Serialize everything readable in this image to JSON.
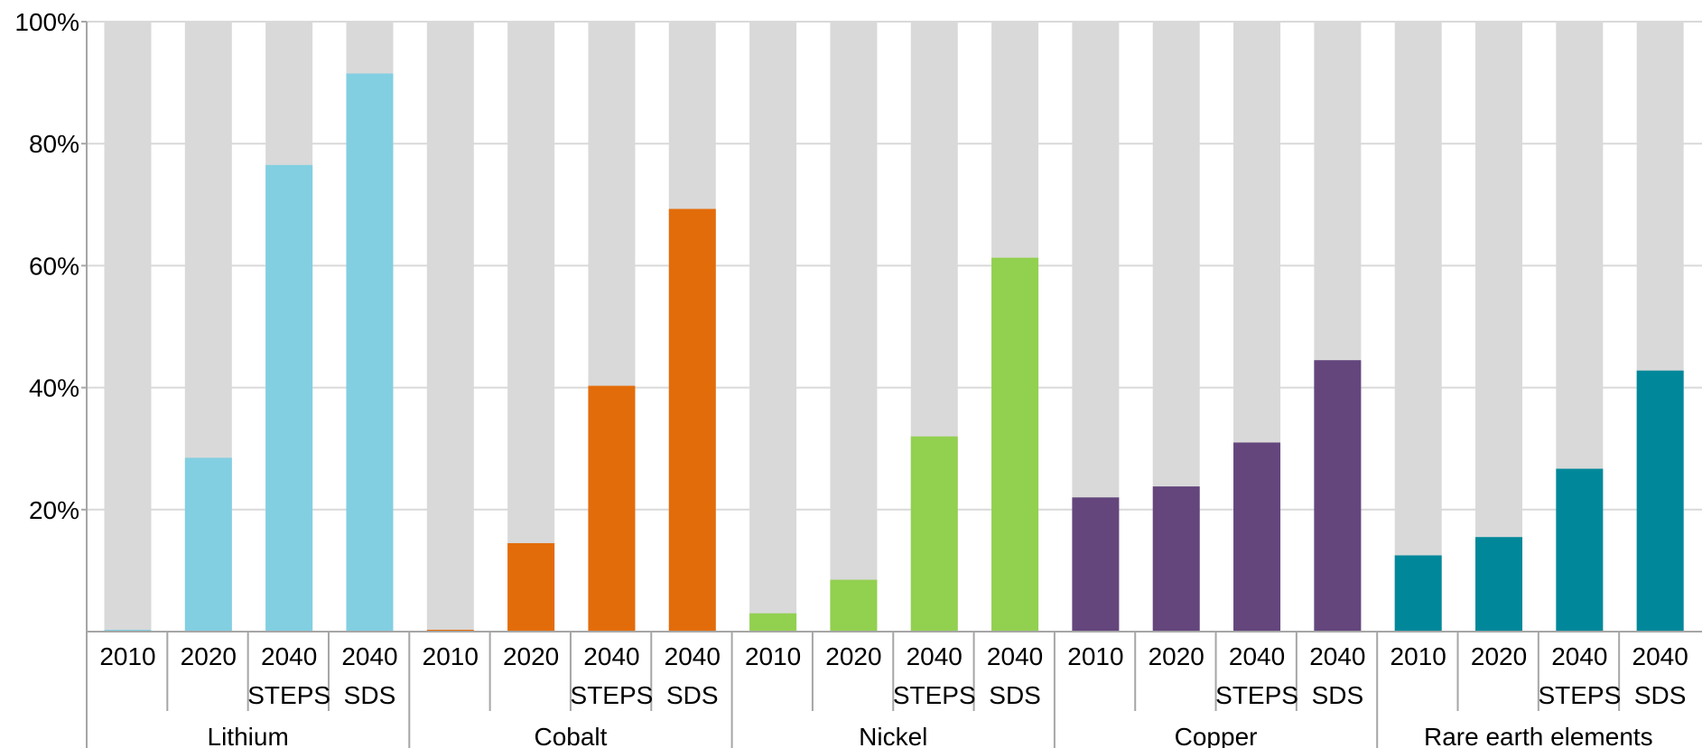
{
  "chart_data": {
    "type": "bar",
    "stacked": true,
    "ylim": [
      0,
      100
    ],
    "yticks": [
      "20%",
      "40%",
      "60%",
      "80%",
      "100%"
    ],
    "grid": true,
    "background_color": "#d9d9d9",
    "groups": [
      {
        "name": "Lithium",
        "color": "#82cfe1",
        "bars": [
          {
            "label": [
              "2010"
            ],
            "value": 0.3
          },
          {
            "label": [
              "2020"
            ],
            "value": 28.5
          },
          {
            "label": [
              "2040",
              "STEPS"
            ],
            "value": 76.5
          },
          {
            "label": [
              "2040",
              "SDS"
            ],
            "value": 91.5
          }
        ]
      },
      {
        "name": "Cobalt",
        "color": "#e36c0a",
        "bars": [
          {
            "label": [
              "2010"
            ],
            "value": 0.3
          },
          {
            "label": [
              "2020"
            ],
            "value": 14.5
          },
          {
            "label": [
              "2040",
              "STEPS"
            ],
            "value": 40.3
          },
          {
            "label": [
              "2040",
              "SDS"
            ],
            "value": 69.3
          }
        ]
      },
      {
        "name": "Nickel",
        "color": "#92d050",
        "bars": [
          {
            "label": [
              "2010"
            ],
            "value": 3
          },
          {
            "label": [
              "2020"
            ],
            "value": 8.5
          },
          {
            "label": [
              "2040",
              "STEPS"
            ],
            "value": 32
          },
          {
            "label": [
              "2040",
              "SDS"
            ],
            "value": 61.3
          }
        ]
      },
      {
        "name": "Copper",
        "color": "#64467d",
        "bars": [
          {
            "label": [
              "2010"
            ],
            "value": 22
          },
          {
            "label": [
              "2020"
            ],
            "value": 23.8
          },
          {
            "label": [
              "2040",
              "STEPS"
            ],
            "value": 31
          },
          {
            "label": [
              "2040",
              "SDS"
            ],
            "value": 44.5
          }
        ]
      },
      {
        "name": "Rare earth elements",
        "color": "#00889a",
        "bars": [
          {
            "label": [
              "2010"
            ],
            "value": 12.5
          },
          {
            "label": [
              "2020"
            ],
            "value": 15.5
          },
          {
            "label": [
              "2040",
              "STEPS"
            ],
            "value": 26.7
          },
          {
            "label": [
              "2040",
              "SDS"
            ],
            "value": 42.8
          }
        ]
      }
    ]
  }
}
